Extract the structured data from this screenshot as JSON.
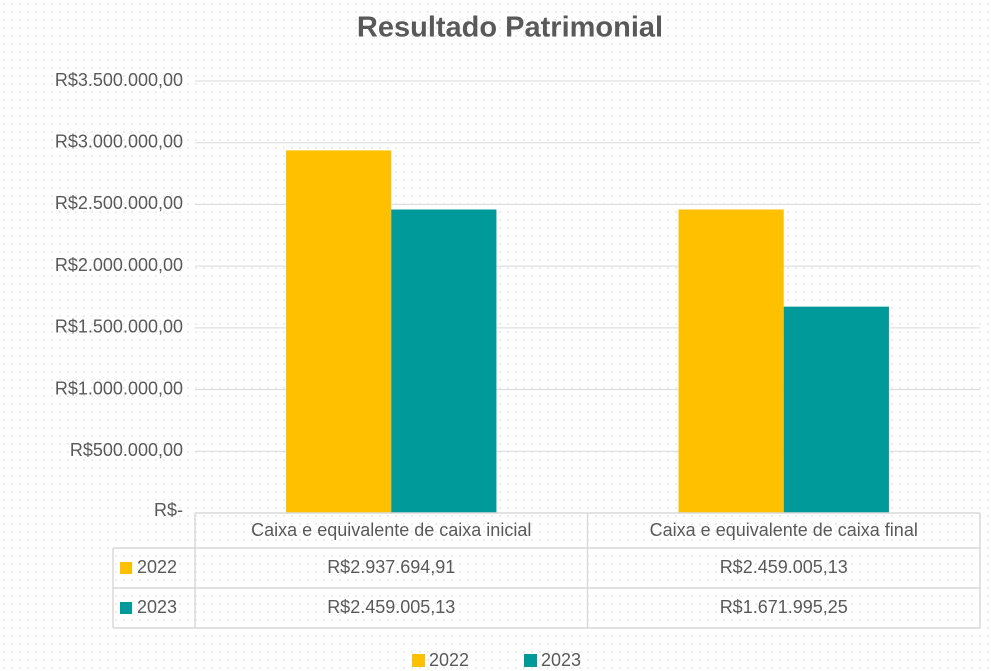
{
  "chart_data": {
    "type": "bar",
    "title": "Resultado Patrimonial",
    "categories": [
      "Caixa e equivalente de caixa inicial",
      "Caixa e equivalente de caixa final"
    ],
    "series": [
      {
        "name": "2022",
        "color": "#ffc000",
        "values": [
          2937694.91,
          2459005.13
        ],
        "value_labels": [
          "R$2.937.694,91",
          "R$2.459.005,13"
        ]
      },
      {
        "name": "2023",
        "color": "#009a9a",
        "values": [
          2459005.13,
          1671995.25
        ],
        "value_labels": [
          "R$2.459.005,13",
          "R$1.671.995,25"
        ]
      }
    ],
    "ylim": [
      0,
      3500000
    ],
    "yticks": [
      {
        "value": 0,
        "label": "R$-"
      },
      {
        "value": 500000,
        "label": "R$500.000,00"
      },
      {
        "value": 1000000,
        "label": "R$1.000.000,00"
      },
      {
        "value": 1500000,
        "label": "R$1.500.000,00"
      },
      {
        "value": 2000000,
        "label": "R$2.000.000,00"
      },
      {
        "value": 2500000,
        "label": "R$2.500.000,00"
      },
      {
        "value": 3000000,
        "label": "R$3.000.000,00"
      },
      {
        "value": 3500000,
        "label": "R$3.500.000,00"
      }
    ],
    "grid": true,
    "legend": "bottom"
  }
}
